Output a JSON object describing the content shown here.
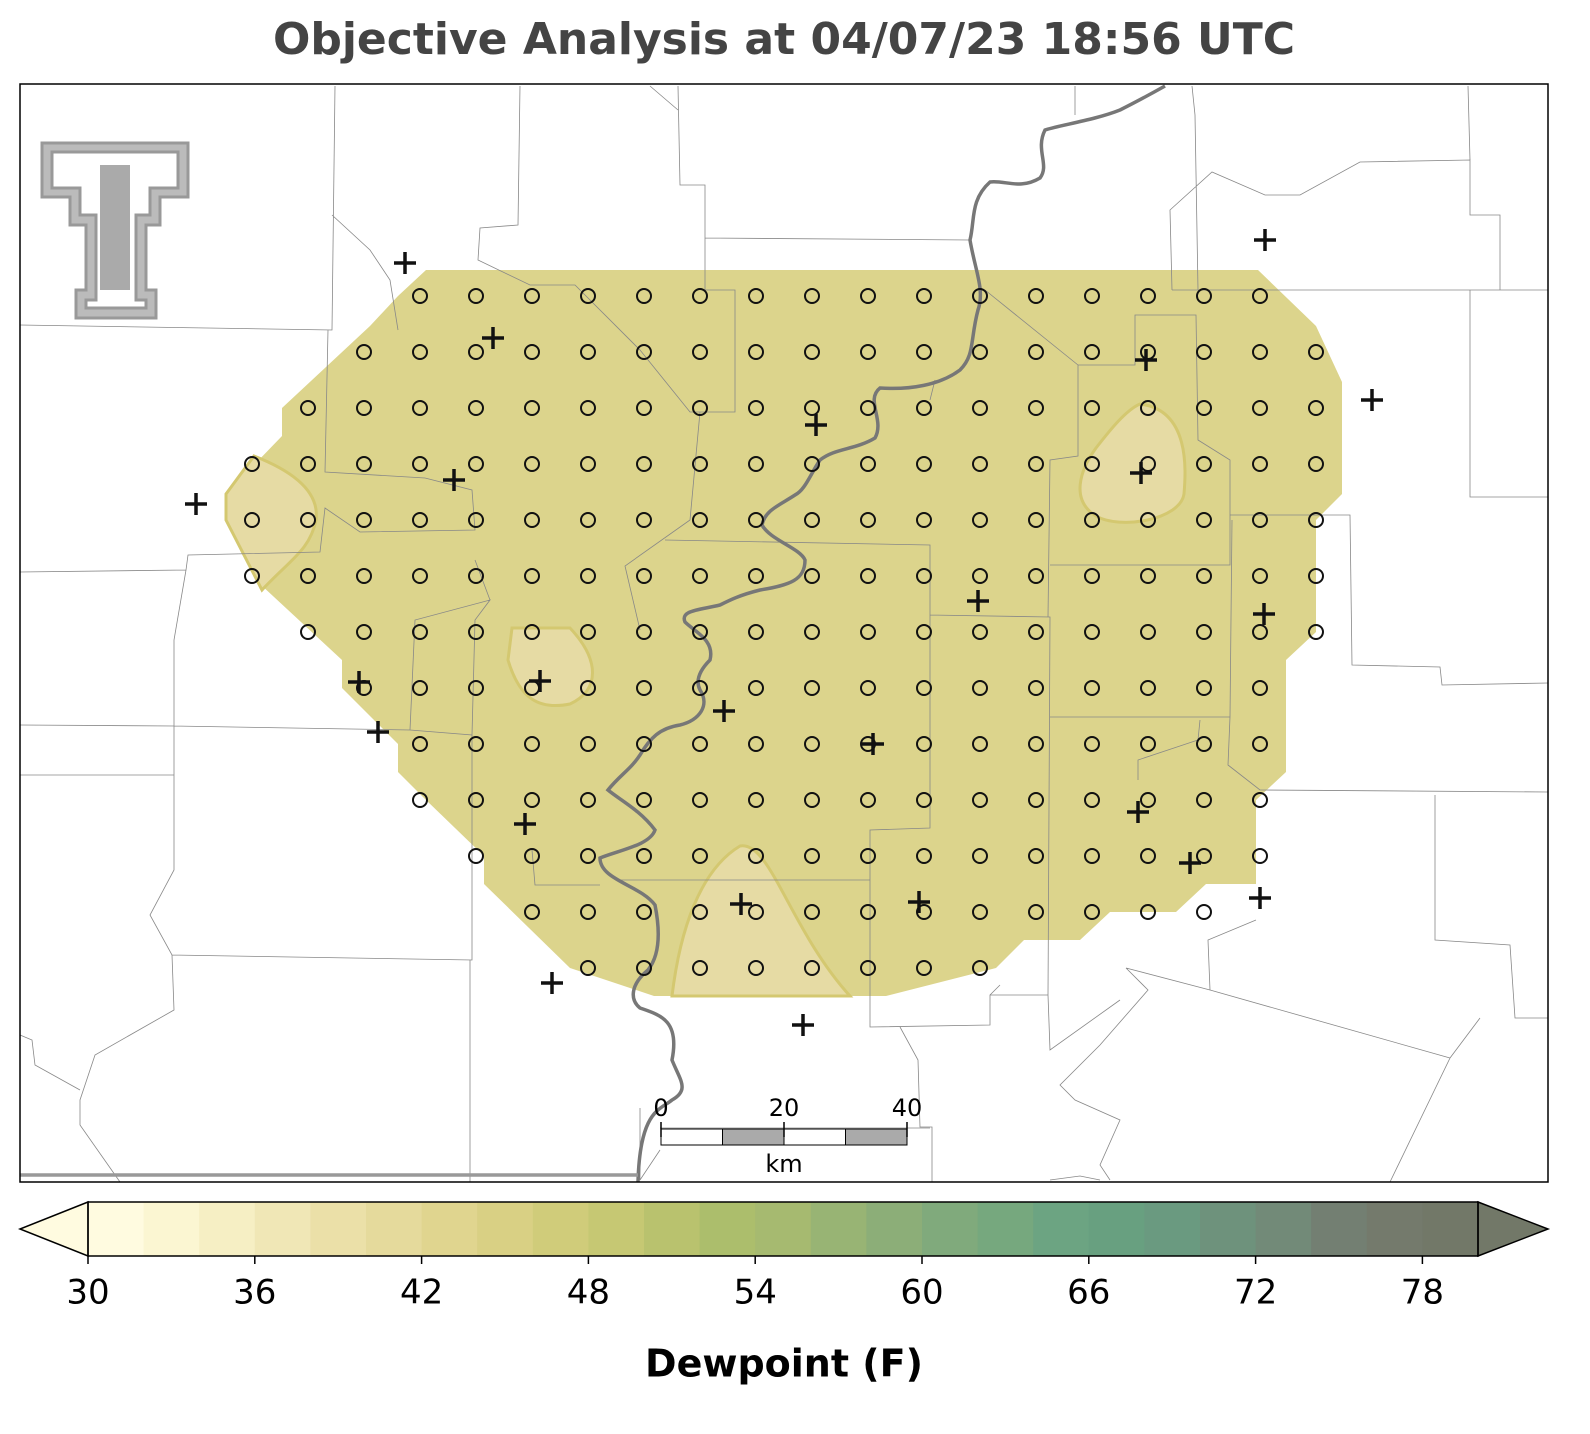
{
  "title": "Objective Analysis at 04/07/23 18:56 UTC",
  "colorbar": {
    "label": "Dewpoint (F)",
    "min": 30,
    "max": 80,
    "ticks": [
      30,
      36,
      42,
      48,
      54,
      60,
      66,
      72,
      78
    ],
    "colors": [
      "#fffbe0",
      "#fbf6d2",
      "#f6efc4",
      "#f0e7b6",
      "#ebe0a8",
      "#e5da9c",
      "#e0d58f",
      "#d9d084",
      "#d0cc7a",
      "#c6c873",
      "#b9c26e",
      "#acbe6c",
      "#a6ba70",
      "#98b474",
      "#8cae78",
      "#80aa7c",
      "#76a87e",
      "#6ca482",
      "#68a080",
      "#6a9a80",
      "#6e927c",
      "#728a78",
      "#737f72",
      "#747a6c",
      "#727868"
    ]
  },
  "scale_bar": {
    "ticks": [
      0,
      20,
      40
    ],
    "unit": "km"
  }
}
